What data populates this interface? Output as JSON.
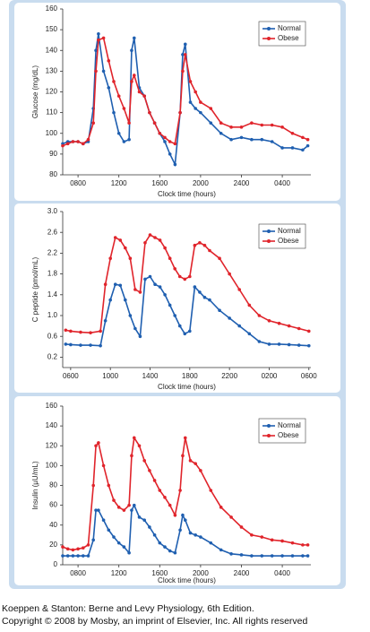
{
  "chart_data": [
    {
      "type": "line",
      "y_label": "Glucose (mg/dL)",
      "x_label": "Clock time (hours)",
      "legend": "upper right",
      "grid": false,
      "x": [
        6.5,
        7,
        7.5,
        8,
        8.5,
        9,
        9.5,
        9.75,
        10,
        10.5,
        11,
        11.5,
        12,
        12.5,
        13,
        13.25,
        13.5,
        14,
        14.5,
        15,
        15.5,
        16,
        16.5,
        17,
        17.5,
        18,
        18.25,
        18.5,
        19,
        19.5,
        20,
        21,
        22,
        23,
        24,
        25,
        26,
        27,
        28,
        29,
        30,
        30.5
      ],
      "xlim": [
        6.5,
        30.8
      ],
      "xticks": [
        {
          "value": 8,
          "label": "0800"
        },
        {
          "value": 12,
          "label": "1200"
        },
        {
          "value": 16,
          "label": "1600"
        },
        {
          "value": 20,
          "label": "2000"
        },
        {
          "value": 24,
          "label": "2400"
        },
        {
          "value": 28,
          "label": "0400"
        }
      ],
      "ylim": [
        80,
        160
      ],
      "yticks": [
        80,
        90,
        100,
        110,
        120,
        130,
        140,
        150,
        160
      ],
      "series": [
        {
          "name": "Normal",
          "color": "#1f5fb0",
          "values": [
            95,
            96,
            96,
            96,
            95,
            96,
            112,
            140,
            148,
            130,
            122,
            110,
            100,
            96,
            97,
            140,
            146,
            122,
            118,
            110,
            105,
            100,
            96,
            90,
            85,
            110,
            138,
            143,
            115,
            112,
            110,
            105,
            100,
            97,
            98,
            97,
            97,
            96,
            93,
            93,
            92,
            94
          ]
        },
        {
          "name": "Obese",
          "color": "#e0242b",
          "values": [
            94,
            95,
            96,
            96,
            95,
            97,
            105,
            130,
            145,
            146,
            135,
            125,
            118,
            112,
            105,
            125,
            128,
            120,
            118,
            110,
            105,
            100,
            98,
            96,
            95,
            110,
            130,
            138,
            125,
            120,
            115,
            112,
            105,
            103,
            103,
            105,
            104,
            104,
            103,
            100,
            98,
            97
          ]
        }
      ]
    },
    {
      "type": "line",
      "y_label": "C peptide (pmol/mL)",
      "x_label": "Clock time (hours)",
      "legend": "upper right",
      "grid": false,
      "x": [
        5.5,
        6,
        7,
        8,
        9,
        9.5,
        10,
        10.5,
        11,
        11.5,
        12,
        12.5,
        13,
        13.5,
        14,
        14.5,
        15,
        15.5,
        16,
        16.5,
        17,
        17.5,
        18,
        18.5,
        19,
        19.5,
        20,
        21,
        22,
        23,
        24,
        25,
        26,
        27,
        28,
        29,
        30
      ],
      "xlim": [
        5.2,
        30.2
      ],
      "xticks": [
        {
          "value": 6,
          "label": "0600"
        },
        {
          "value": 10,
          "label": "1000"
        },
        {
          "value": 14,
          "label": "1400"
        },
        {
          "value": 18,
          "label": "1800"
        },
        {
          "value": 22,
          "label": "2200"
        },
        {
          "value": 26,
          "label": "0200"
        },
        {
          "value": 30,
          "label": "0600"
        }
      ],
      "ylim": [
        0,
        3
      ],
      "yticks": [
        0.2,
        0.6,
        {
          "value": 1,
          "label": "1.0"
        },
        1.4,
        1.8,
        2.2,
        2.6,
        {
          "value": 3,
          "label": "3.0"
        }
      ],
      "series": [
        {
          "name": "Normal",
          "color": "#1f5fb0",
          "values": [
            0.45,
            0.44,
            0.43,
            0.43,
            0.42,
            0.9,
            1.3,
            1.6,
            1.58,
            1.3,
            1.0,
            0.75,
            0.6,
            1.7,
            1.75,
            1.6,
            1.55,
            1.4,
            1.2,
            1.0,
            0.8,
            0.65,
            0.7,
            1.55,
            1.45,
            1.35,
            1.3,
            1.1,
            0.95,
            0.8,
            0.65,
            0.5,
            0.45,
            0.45,
            0.44,
            0.43,
            0.42
          ]
        },
        {
          "name": "Obese",
          "color": "#e0242b",
          "values": [
            0.72,
            0.7,
            0.68,
            0.67,
            0.7,
            1.6,
            2.1,
            2.5,
            2.45,
            2.3,
            2.1,
            1.5,
            1.45,
            2.4,
            2.55,
            2.5,
            2.45,
            2.3,
            2.1,
            1.9,
            1.75,
            1.7,
            1.75,
            2.35,
            2.4,
            2.35,
            2.25,
            2.1,
            1.8,
            1.5,
            1.2,
            1.0,
            0.9,
            0.85,
            0.8,
            0.75,
            0.7
          ]
        }
      ]
    },
    {
      "type": "line",
      "y_label": "Insulin (µU/mL)",
      "x_label": "Clock time (hours)",
      "legend": "upper right",
      "grid": false,
      "x": [
        6.5,
        7,
        7.5,
        8,
        8.5,
        9,
        9.5,
        9.75,
        10,
        10.5,
        11,
        11.5,
        12,
        12.5,
        13,
        13.25,
        13.5,
        14,
        14.5,
        15,
        15.5,
        16,
        16.5,
        17,
        17.5,
        18,
        18.25,
        18.5,
        19,
        19.5,
        20,
        21,
        22,
        23,
        24,
        25,
        26,
        27,
        28,
        29,
        30,
        30.5
      ],
      "xlim": [
        6.5,
        30.8
      ],
      "xticks": [
        {
          "value": 8,
          "label": "0800"
        },
        {
          "value": 12,
          "label": "1200"
        },
        {
          "value": 16,
          "label": "1600"
        },
        {
          "value": 20,
          "label": "2000"
        },
        {
          "value": 24,
          "label": "2400"
        },
        {
          "value": 28,
          "label": "0400"
        }
      ],
      "ylim": [
        0,
        160
      ],
      "yticks": [
        0,
        20,
        40,
        60,
        80,
        100,
        120,
        140,
        160
      ],
      "series": [
        {
          "name": "Normal",
          "color": "#1f5fb0",
          "values": [
            9,
            9,
            9,
            9,
            9,
            9,
            25,
            55,
            55,
            45,
            35,
            28,
            22,
            18,
            12,
            55,
            60,
            48,
            45,
            38,
            30,
            22,
            18,
            14,
            12,
            35,
            50,
            45,
            32,
            30,
            28,
            22,
            15,
            11,
            10,
            9,
            9,
            9,
            9,
            9,
            9,
            9
          ]
        },
        {
          "name": "Obese",
          "color": "#e0242b",
          "values": [
            18,
            16,
            15,
            16,
            17,
            20,
            80,
            120,
            123,
            100,
            80,
            65,
            58,
            55,
            60,
            110,
            128,
            120,
            105,
            95,
            85,
            75,
            68,
            60,
            50,
            75,
            110,
            128,
            105,
            102,
            95,
            75,
            58,
            48,
            38,
            30,
            28,
            25,
            24,
            22,
            20,
            20
          ]
        }
      ]
    }
  ],
  "caption": [
    "Koeppen & Stanton: Berne and Levy Physiology, 6th Edition.",
    "Copyright © 2008 by Mosby, an imprint of Elsevier, Inc. All rights reserved"
  ]
}
